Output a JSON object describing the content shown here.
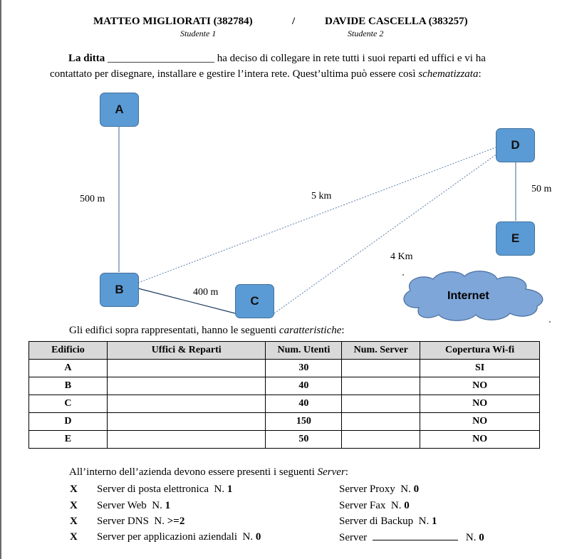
{
  "header": {
    "student1_name": "MATTEO MIGLIORATI (382784)",
    "separator": "/",
    "student2_name": "DAVIDE CASCELLA (383257)",
    "student1_role": "Studente 1",
    "student2_role": "Studente 2"
  },
  "intro": {
    "lead": "La ditta",
    "blank": "____________________",
    "text1": " ha deciso di collegare in rete tutti i suoi reparti ed uffici e vi ha",
    "text2": "contattato per disegnare, installare e gestire l’intera rete. Quest’ultima può essere così ",
    "text2_italic": "schematizzata",
    "text2_end": ":"
  },
  "diagram": {
    "nodes": [
      "A",
      "B",
      "C",
      "D",
      "E"
    ],
    "links": {
      "ab": "500 m",
      "bd": "5 km",
      "cd": "4 Km",
      "bc": "400 m",
      "de": "50 m"
    },
    "cloud": "Internet",
    "node_color": "#5b9bd5",
    "cloud_color": "#7ea6d9"
  },
  "table": {
    "caption": "Gli edifici sopra rappresentati, hanno le seguenti ",
    "caption_italic": "caratteristiche",
    "caption_end": ":",
    "headers": [
      "Edificio",
      "Uffici & Reparti",
      "Num. Utenti",
      "Num. Server",
      "Copertura Wi-fi"
    ],
    "rows": [
      [
        "A",
        "",
        "30",
        "",
        "SI"
      ],
      [
        "B",
        "",
        "40",
        "",
        "NO"
      ],
      [
        "C",
        "",
        "40",
        "",
        "NO"
      ],
      [
        "D",
        "",
        "150",
        "",
        "NO"
      ],
      [
        "E",
        "",
        "50",
        "",
        "NO"
      ]
    ]
  },
  "servers": {
    "title": "All’interno dell’azienda devono essere presenti i seguenti ",
    "title_italic": "Server",
    "title_end": ":",
    "mark": "X",
    "left": [
      {
        "label": "Server di posta elettronica",
        "n": "N.",
        "val": "1"
      },
      {
        "label": "Server Web",
        "n": "N.",
        "val": "1"
      },
      {
        "label": "Server DNS",
        "n": "N.",
        "val": ">=2"
      },
      {
        "label": "Server per applicazioni aziendali",
        "n": "N.",
        "val": "0"
      }
    ],
    "right": [
      {
        "label": "Server Proxy",
        "n": "N.",
        "val": "0"
      },
      {
        "label": "Server Fax",
        "n": "N.",
        "val": "0"
      },
      {
        "label": "Server di Backup",
        "n": "N.",
        "val": "1"
      },
      {
        "label": "Server",
        "n": "N.",
        "val": "0"
      }
    ]
  }
}
